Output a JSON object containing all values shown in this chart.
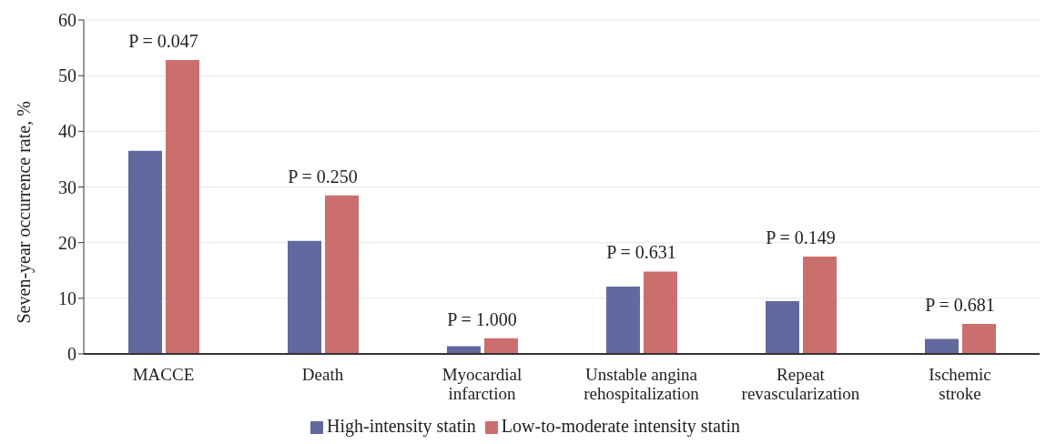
{
  "chart_data": {
    "type": "bar",
    "ylabel": "Seven-year occurrence rate, %",
    "categories": [
      "MACCE",
      "Death",
      "Myocardial infarction",
      "Unstable angina rehospitalization",
      "Repeat revascularization",
      "Ischemic stroke"
    ],
    "series": [
      {
        "name": "High-intensity statin",
        "color": "#62699e",
        "values": [
          36.5,
          20.3,
          1.4,
          12.1,
          9.5,
          2.7
        ]
      },
      {
        "name": "Low-to-moderate intensity statin",
        "color": "#cb6f6e",
        "values": [
          52.8,
          28.5,
          2.8,
          14.8,
          17.5,
          5.4
        ]
      }
    ],
    "ylim": [
      0,
      60
    ],
    "yticks": [
      0,
      10,
      20,
      30,
      40,
      50,
      60
    ],
    "grid": "y",
    "legend": "bottom",
    "annotations": [
      {
        "text": "P = 0.047",
        "x": "MACCE",
        "y": 52.8
      },
      {
        "text": "P = 0.250",
        "x": "Death",
        "y": 28.5
      },
      {
        "text": "P = 1.000",
        "x": "Myocardial infarction",
        "y": 2.8
      },
      {
        "text": "P = 0.631",
        "x": "Unstable angina rehospitalization",
        "y": 14.8
      },
      {
        "text": "P = 0.149",
        "x": "Repeat revascularization",
        "y": 17.5
      },
      {
        "text": "P = 0.681",
        "x": "Ischemic stroke",
        "y": 5.4
      }
    ]
  }
}
